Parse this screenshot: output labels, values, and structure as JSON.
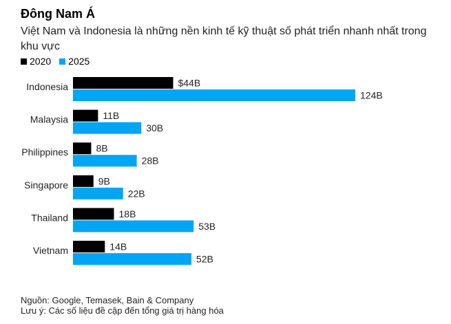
{
  "chart_data": {
    "type": "bar",
    "orientation": "horizontal",
    "title": "Đông Nam Á",
    "subtitle": "Việt Nam và Indonesia là những nền kinh tế kỹ thuật số phát triển nhanh nhất trong khu vực",
    "categories": [
      "Indonesia",
      "Malaysia",
      "Philippines",
      "Singapore",
      "Thailand",
      "Vietnam"
    ],
    "series": [
      {
        "name": "2020",
        "color": "#000000",
        "values": [
          44,
          11,
          8,
          9,
          18,
          14
        ],
        "labels": [
          "$44B",
          "11B",
          "8B",
          "9B",
          "18B",
          "14B"
        ]
      },
      {
        "name": "2025",
        "color": "#00a6f4",
        "values": [
          124,
          30,
          28,
          22,
          53,
          52
        ],
        "labels": [
          "124B",
          "30B",
          "28B",
          "22B",
          "53B",
          "52B"
        ]
      }
    ],
    "xlim": [
      0,
      124
    ],
    "legend_position": "top-left",
    "grid": false
  },
  "footer": {
    "source": "Nguồn: Google, Temasek, Bain & Company",
    "note": "Lưu ý: Các số liệu đề cập đến tổng giá trị hàng hóa"
  }
}
